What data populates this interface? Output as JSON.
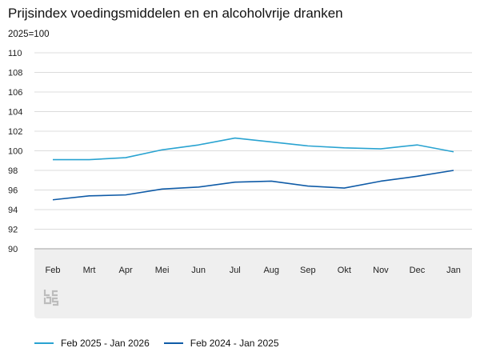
{
  "chart_data": {
    "type": "line",
    "title": "Prijsindex voedingsmiddelen en en alcoholvrije dranken",
    "ylabel": "2025=100",
    "xlabel": "",
    "categories": [
      "Feb",
      "Mrt",
      "Apr",
      "Mei",
      "Jun",
      "Jul",
      "Aug",
      "Sep",
      "Okt",
      "Nov",
      "Dec",
      "Jan"
    ],
    "ylim": [
      90,
      110
    ],
    "yticks": [
      90,
      92,
      94,
      96,
      98,
      100,
      102,
      104,
      106,
      108,
      110
    ],
    "grid": true,
    "legend_position": "bottom-left",
    "series": [
      {
        "name": "Feb 2025 - Jan 2026",
        "color": "#29a3d1",
        "values": [
          99.1,
          99.1,
          99.3,
          100.1,
          100.6,
          101.3,
          100.9,
          100.5,
          100.3,
          100.2,
          100.6,
          99.9
        ]
      },
      {
        "name": "Feb 2024 - Jan 2025",
        "color": "#0f5ba7",
        "values": [
          95.0,
          95.4,
          95.5,
          96.1,
          96.3,
          96.8,
          96.9,
          96.4,
          96.2,
          96.9,
          97.4,
          98.0
        ]
      }
    ]
  }
}
